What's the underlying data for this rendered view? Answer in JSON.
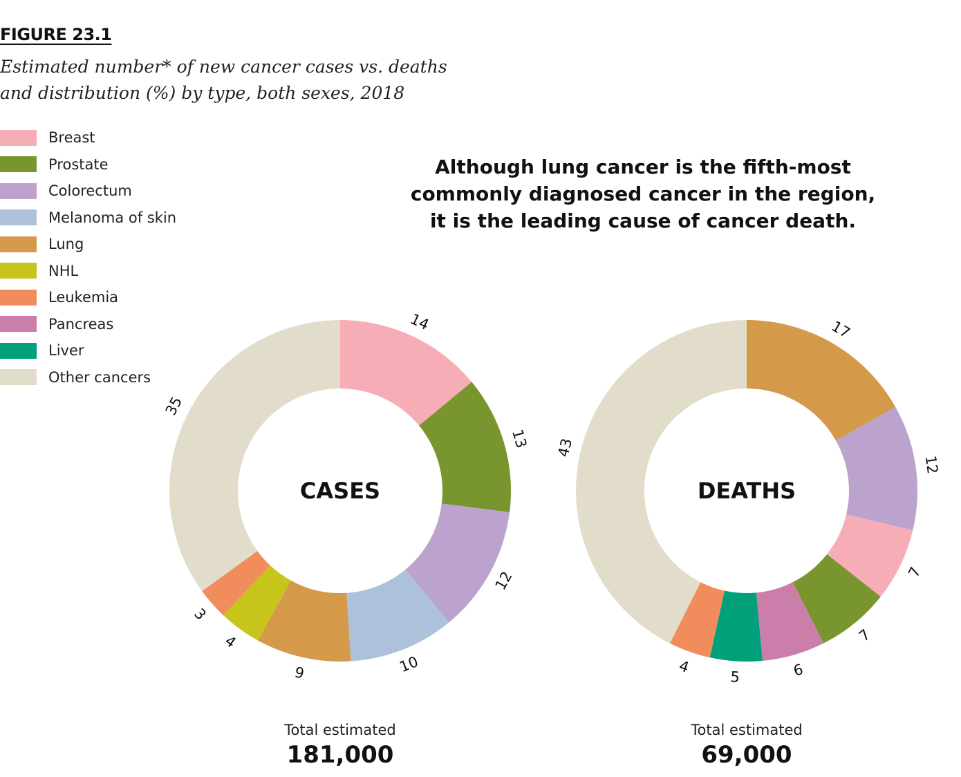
{
  "header": {
    "figure_label": "FIGURE 23.1",
    "subtitle_line1": "Estimated number* of new cancer cases vs. deaths",
    "subtitle_line2": "and distribution (%) by type, both sexes, 2018"
  },
  "legend": [
    {
      "label": "Breast",
      "color": "#f6adb6"
    },
    {
      "label": "Prostate",
      "color": "#79962e"
    },
    {
      "label": "Colorectum",
      "color": "#bba3cd"
    },
    {
      "label": "Melanoma of skin",
      "color": "#adc1da"
    },
    {
      "label": "Lung",
      "color": "#d49a4a"
    },
    {
      "label": "NHL",
      "color": "#c7c41b"
    },
    {
      "label": "Leukemia",
      "color": "#f18c5c"
    },
    {
      "label": "Pancreas",
      "color": "#cb7ea9"
    },
    {
      "label": "Liver",
      "color": "#00a07a"
    },
    {
      "label": "Other cancers",
      "color": "#e2ddca"
    }
  ],
  "callout": {
    "line1": "Although lung cancer is the fifth-most",
    "line2": "commonly diagnosed cancer in the region,",
    "line3": "it is the leading cause of cancer death."
  },
  "chart_data": [
    {
      "type": "pie",
      "center_label": "CASES",
      "unit": "%",
      "slices": [
        {
          "name": "Breast",
          "value": 14,
          "label": "14",
          "color": "#f6adb6"
        },
        {
          "name": "Prostate",
          "value": 13,
          "label": "13",
          "color": "#79962e"
        },
        {
          "name": "Colorectum",
          "value": 12,
          "label": "12",
          "color": "#bba3cd"
        },
        {
          "name": "Melanoma of skin",
          "value": 10,
          "label": "10",
          "color": "#adc1da"
        },
        {
          "name": "Lung",
          "value": 9,
          "label": "9",
          "color": "#d49a4a"
        },
        {
          "name": "NHL",
          "value": 4,
          "label": "4",
          "color": "#c7c41b"
        },
        {
          "name": "Leukemia",
          "value": 3,
          "label": "3",
          "color": "#f18c5c"
        },
        {
          "name": "Other cancers",
          "value": 35,
          "label": "35",
          "color": "#e2ddca"
        }
      ],
      "total_label": "Total estimated",
      "total_value": "181,000"
    },
    {
      "type": "pie",
      "center_label": "DEATHS",
      "unit": "%",
      "slices": [
        {
          "name": "Lung",
          "value": 17,
          "label": "17",
          "color": "#d49a4a"
        },
        {
          "name": "Colorectum",
          "value": 12,
          "label": "12",
          "color": "#bba3cd"
        },
        {
          "name": "Breast",
          "value": 7,
          "label": "7",
          "color": "#f6adb6"
        },
        {
          "name": "Prostate",
          "value": 7,
          "label": "7",
          "color": "#79962e"
        },
        {
          "name": "Pancreas",
          "value": 6,
          "label": "6",
          "color": "#cb7ea9"
        },
        {
          "name": "Liver",
          "value": 5,
          "label": "5",
          "color": "#00a07a"
        },
        {
          "name": "Leukemia",
          "value": 4,
          "label": "4",
          "color": "#f18c5c"
        },
        {
          "name": "Other cancers",
          "value": 43,
          "label": "43",
          "color": "#e2ddca"
        }
      ],
      "total_label": "Total estimated",
      "total_value": "69,000"
    }
  ]
}
